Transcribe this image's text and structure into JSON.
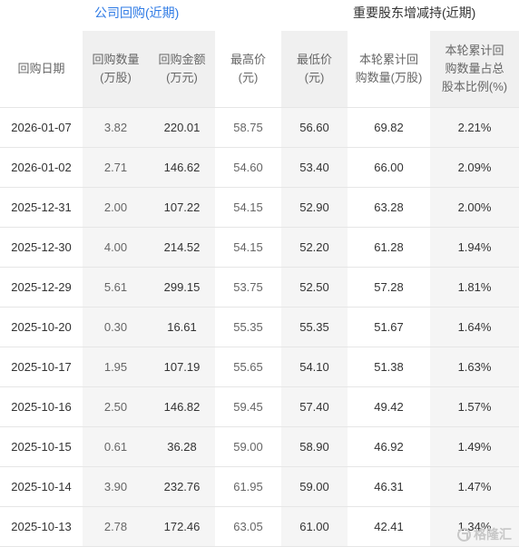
{
  "tabs": {
    "company_buyback": "公司回购(近期)",
    "major_shareholder": "重要股东增减持(近期)"
  },
  "table": {
    "headers": [
      "回购日期",
      "回购数量\n(万股)",
      "回购金额\n(万元)",
      "最高价\n(元)",
      "最低价\n(元)",
      "本轮累计回\n购数量(万股)",
      "本轮累计回\n购数量占总\n股本比例(%)"
    ],
    "rows": [
      [
        "2026-01-07",
        "3.82",
        "220.01",
        "58.75",
        "56.60",
        "69.82",
        "2.21%"
      ],
      [
        "2026-01-02",
        "2.71",
        "146.62",
        "54.60",
        "53.40",
        "66.00",
        "2.09%"
      ],
      [
        "2025-12-31",
        "2.00",
        "107.22",
        "54.15",
        "52.90",
        "63.28",
        "2.00%"
      ],
      [
        "2025-12-30",
        "4.00",
        "214.52",
        "54.15",
        "52.20",
        "61.28",
        "1.94%"
      ],
      [
        "2025-12-29",
        "5.61",
        "299.15",
        "53.75",
        "52.50",
        "57.28",
        "1.81%"
      ],
      [
        "2025-10-20",
        "0.30",
        "16.61",
        "55.35",
        "55.35",
        "51.67",
        "1.64%"
      ],
      [
        "2025-10-17",
        "1.95",
        "107.19",
        "55.65",
        "54.10",
        "51.38",
        "1.63%"
      ],
      [
        "2025-10-16",
        "2.50",
        "146.82",
        "59.45",
        "57.40",
        "49.42",
        "1.57%"
      ],
      [
        "2025-10-15",
        "0.61",
        "36.28",
        "59.00",
        "58.90",
        "46.92",
        "1.49%"
      ],
      [
        "2025-10-14",
        "3.90",
        "232.76",
        "61.95",
        "59.00",
        "46.31",
        "1.47%"
      ],
      [
        "2025-10-13",
        "2.78",
        "172.46",
        "63.05",
        "61.00",
        "42.41",
        "1.34%"
      ]
    ]
  },
  "watermark": {
    "text": "格隆汇",
    "icon": "gelonghui-logo-icon"
  }
}
